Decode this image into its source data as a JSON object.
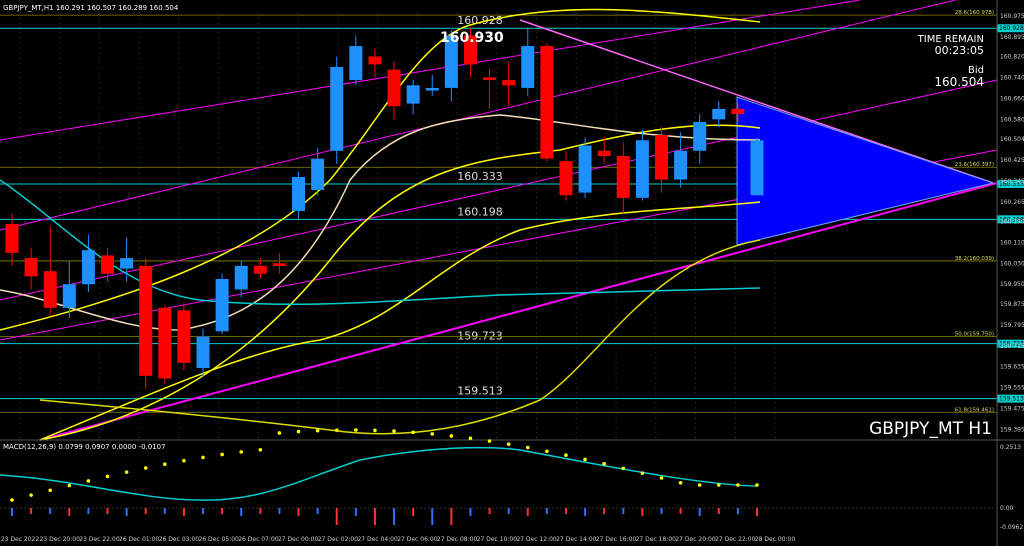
{
  "header": {
    "ohlc_line": "GBPJPY_MT,H1  160.291 160.507 160.289 160.504"
  },
  "overlay": {
    "time_remain_label": "TIME REMAIN",
    "time_remain_value": "00:23:05",
    "bid_label": "Bid",
    "bid_value": "160.504",
    "symbol_label": "GBPJPY_MT H1",
    "high_label": "160.930"
  },
  "levels": [
    {
      "text": "160.928",
      "price": 160.928,
      "color": "#00CED1"
    },
    {
      "text": "160.333",
      "price": 160.333,
      "color": "#00CED1"
    },
    {
      "text": "160.198",
      "price": 160.198,
      "color": "#00CED1"
    },
    {
      "text": "159.723",
      "price": 159.723,
      "color": "#00CED1"
    },
    {
      "text": "159.513",
      "price": 159.513,
      "color": "#00CED1"
    }
  ],
  "fib_levels": [
    {
      "text": "28.6(160.978)",
      "price": 160.978
    },
    {
      "text": "23.6(160.397)",
      "price": 160.397
    },
    {
      "text": "38.2(160.039)",
      "price": 160.039
    },
    {
      "text": "50.0(159.750)",
      "price": 159.75
    },
    {
      "text": "61.8(159.461)",
      "price": 159.461
    }
  ],
  "macd_label": "MACD(12,26,9) 0.0799 0.0907 0.0000 -0.0107",
  "colors": {
    "bull": "#1E90FF",
    "bear": "#FF0000",
    "band": "#FFFF00",
    "channel": "#FF00FF",
    "level": "#00CED1",
    "triangle": "#0000FF",
    "grid": "#1a1a1a"
  },
  "chart_data": {
    "type": "candlestick",
    "price_axis": {
      "ylim": [
        159.355,
        160.99
      ],
      "ticks": [
        "160.975",
        "160.895",
        "160.820",
        "160.740",
        "160.660",
        "160.580",
        "160.504",
        "160.425",
        "160.345",
        "160.265",
        "160.190",
        "160.110",
        "160.030",
        "159.950",
        "159.875",
        "159.795",
        "159.715",
        "159.635",
        "159.555",
        "159.475",
        "159.395"
      ],
      "marked": [
        "160.928",
        "160.504",
        "160.333",
        "160.198",
        "159.723",
        "159.513"
      ]
    },
    "time_axis": {
      "ticks": [
        "23 Dec 2022",
        "23 Dec 20:00",
        "23 Dec 22:00",
        "26 Dec 01:00",
        "26 Dec 03:00",
        "26 Dec 05:00",
        "26 Dec 07:00",
        "27 Dec 00:00",
        "27 Dec 02:00",
        "27 Dec 04:00",
        "27 Dec 06:00",
        "27 Dec 08:00",
        "27 Dec 10:00",
        "27 Dec 12:00",
        "27 Dec 14:00",
        "27 Dec 16:00",
        "27 Dec 18:00",
        "27 Dec 20:00",
        "27 Dec 22:00",
        "28 Dec 00:00"
      ]
    },
    "candles": [
      [
        160.18,
        160.07,
        160.22,
        160.02
      ],
      [
        160.05,
        159.98,
        160.09,
        159.93
      ],
      [
        160.0,
        159.86,
        160.17,
        159.83
      ],
      [
        159.86,
        159.95,
        160.04,
        159.82
      ],
      [
        159.95,
        160.08,
        160.14,
        159.92
      ],
      [
        160.06,
        159.99,
        160.09,
        159.96
      ],
      [
        160.01,
        160.05,
        160.13,
        159.96
      ],
      [
        160.02,
        159.6,
        160.05,
        159.55
      ],
      [
        159.86,
        159.59,
        159.87,
        159.57
      ],
      [
        159.85,
        159.65,
        159.88,
        159.62
      ],
      [
        159.63,
        159.75,
        159.78,
        159.6
      ],
      [
        159.77,
        159.97,
        159.99,
        159.76
      ],
      [
        159.93,
        160.02,
        160.04,
        159.9
      ],
      [
        160.02,
        159.99,
        160.05,
        159.97
      ],
      [
        160.03,
        160.02,
        160.07,
        159.99
      ],
      [
        160.23,
        160.36,
        160.38,
        160.2
      ],
      [
        160.31,
        160.43,
        160.47,
        160.29
      ],
      [
        160.46,
        160.78,
        160.82,
        160.41
      ],
      [
        160.73,
        160.86,
        160.9,
        160.71
      ],
      [
        160.82,
        160.79,
        160.85,
        160.74
      ],
      [
        160.77,
        160.63,
        160.8,
        160.58
      ],
      [
        160.64,
        160.71,
        160.73,
        160.6
      ],
      [
        160.69,
        160.7,
        160.75,
        160.67
      ],
      [
        160.7,
        160.9,
        160.92,
        160.65
      ],
      [
        160.9,
        160.79,
        160.93,
        160.74
      ],
      [
        160.74,
        160.73,
        160.77,
        160.62
      ],
      [
        160.73,
        160.71,
        160.8,
        160.63
      ],
      [
        160.7,
        160.86,
        160.93,
        160.67
      ],
      [
        160.86,
        160.43,
        160.87,
        160.42
      ],
      [
        160.42,
        160.29,
        160.46,
        160.27
      ],
      [
        160.3,
        160.48,
        160.51,
        160.28
      ],
      [
        160.46,
        160.44,
        160.51,
        160.41
      ],
      [
        160.44,
        160.28,
        160.49,
        160.22
      ],
      [
        160.28,
        160.5,
        160.54,
        160.27
      ],
      [
        160.52,
        160.35,
        160.55,
        160.3
      ],
      [
        160.35,
        160.46,
        160.53,
        160.32
      ],
      [
        160.46,
        160.57,
        160.6,
        160.41
      ],
      [
        160.58,
        160.62,
        160.65,
        160.55
      ],
      [
        160.62,
        160.6,
        160.64,
        160.57
      ],
      [
        160.29,
        160.5,
        160.51,
        160.29
      ]
    ]
  }
}
